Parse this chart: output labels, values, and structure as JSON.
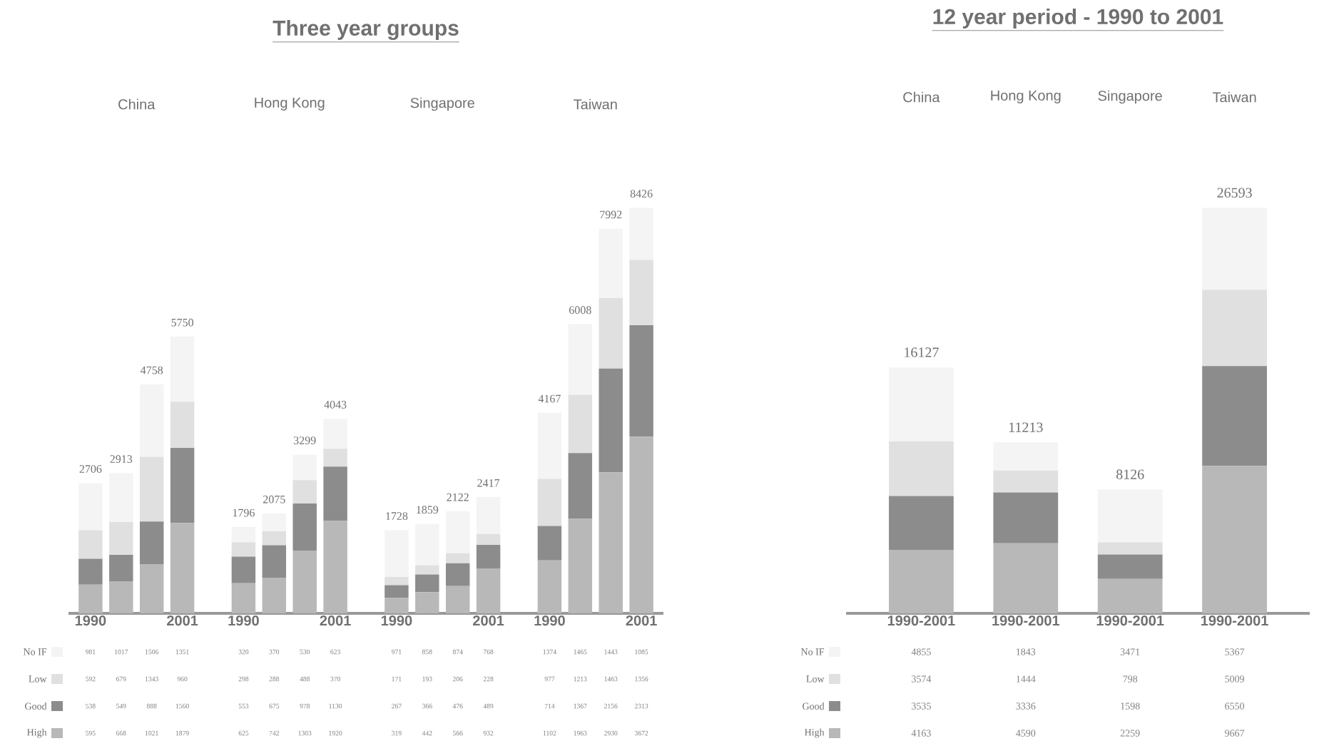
{
  "chart_data": [
    {
      "type": "bar",
      "title": "Three year groups",
      "stacked": true,
      "data_labels": true,
      "legend": "bottom left",
      "categories": [
        "1990",
        null,
        null,
        "2001",
        "1990",
        null,
        null,
        "2001",
        "1990",
        null,
        null,
        "2001",
        "1990",
        null,
        null,
        "2001"
      ],
      "annotations": [
        "China",
        "Hong Kong",
        "Singapore",
        "Taiwan"
      ],
      "series": [
        {
          "name": "High",
          "color": "#b8b8b8",
          "values": [
            595,
            668,
            1021,
            1879,
            625,
            742,
            1303,
            1920,
            319,
            442,
            566,
            932,
            1102,
            1963,
            2930,
            3672
          ]
        },
        {
          "name": "Good",
          "color": "#8c8c8c",
          "values": [
            538,
            549,
            888,
            1560,
            553,
            675,
            978,
            1130,
            267,
            366,
            476,
            489,
            714,
            1367,
            2156,
            2313
          ]
        },
        {
          "name": "Low",
          "color": "#e0e0e0",
          "values": [
            592,
            679,
            1343,
            960,
            298,
            288,
            488,
            370,
            171,
            193,
            206,
            228,
            977,
            1213,
            1463,
            1356
          ]
        },
        {
          "name": "No IF",
          "color": "#f4f4f4",
          "values": [
            981,
            1017,
            1506,
            1351,
            320,
            370,
            530,
            623,
            971,
            858,
            874,
            768,
            1374,
            1465,
            1443,
            1085
          ]
        }
      ],
      "totals": [
        "2706",
        "2913",
        "4758",
        "5750",
        "1796",
        "2075",
        "3299",
        "4043",
        "1728",
        "1859",
        "2122",
        "2417",
        "4167",
        "6008",
        "7992",
        "8426"
      ]
    },
    {
      "type": "bar",
      "title": "12 year period - 1990 to 2001",
      "stacked": true,
      "data_labels": true,
      "legend": "bottom left",
      "categories": [
        "1990-2001",
        "1990-2001",
        "1990-2001",
        "1990-2001"
      ],
      "annotations": [
        "China",
        "Hong Kong",
        "Singapore",
        "Taiwan"
      ],
      "series": [
        {
          "name": "High",
          "color": "#b8b8b8",
          "values": [
            4163,
            4590,
            2259,
            9667
          ]
        },
        {
          "name": "Good",
          "color": "#8c8c8c",
          "values": [
            3535,
            3336,
            1598,
            6550
          ]
        },
        {
          "name": "Low",
          "color": "#e0e0e0",
          "values": [
            3574,
            1444,
            798,
            5009
          ]
        },
        {
          "name": "No IF",
          "color": "#f4f4f4",
          "values": [
            4855,
            1843,
            3471,
            5367
          ]
        }
      ],
      "totals": [
        "16127",
        "11213",
        "8126",
        "26593"
      ]
    }
  ]
}
